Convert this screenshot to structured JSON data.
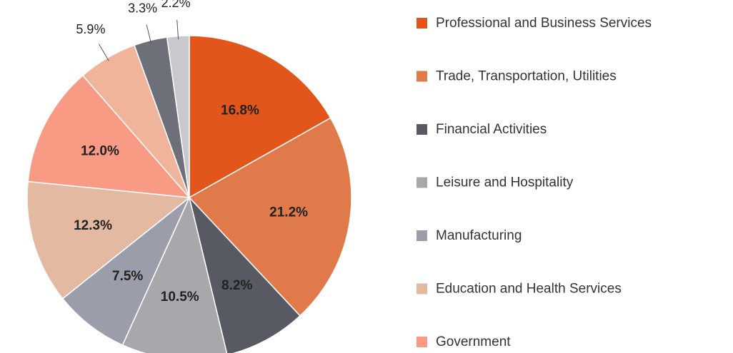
{
  "chart_data": {
    "type": "pie",
    "categories": [
      "Professional and Business Services",
      "Trade, Transportation, Utilities",
      "Financial Activities",
      "Leisure and Hospitality",
      "Manufacturing",
      "Education and Health Services",
      "Government",
      null,
      null,
      null
    ],
    "values": [
      16.8,
      21.2,
      8.2,
      10.5,
      7.5,
      12.3,
      12.0,
      5.9,
      3.3,
      2.2
    ],
    "value_labels": [
      "16.8%",
      "21.2%",
      "8.2%",
      "10.5%",
      "7.5%",
      "12.3%",
      "12.0%",
      "5.9%",
      "3.3%",
      "2.2%"
    ],
    "colors": [
      "#e2561c",
      "#e07a4b",
      "#575a62",
      "#a7a8ab",
      "#9b9eaa",
      "#e3b9a2",
      "#f99a85",
      "#f0b49a",
      "#6d7079",
      "#c9c9cd"
    ]
  }
}
